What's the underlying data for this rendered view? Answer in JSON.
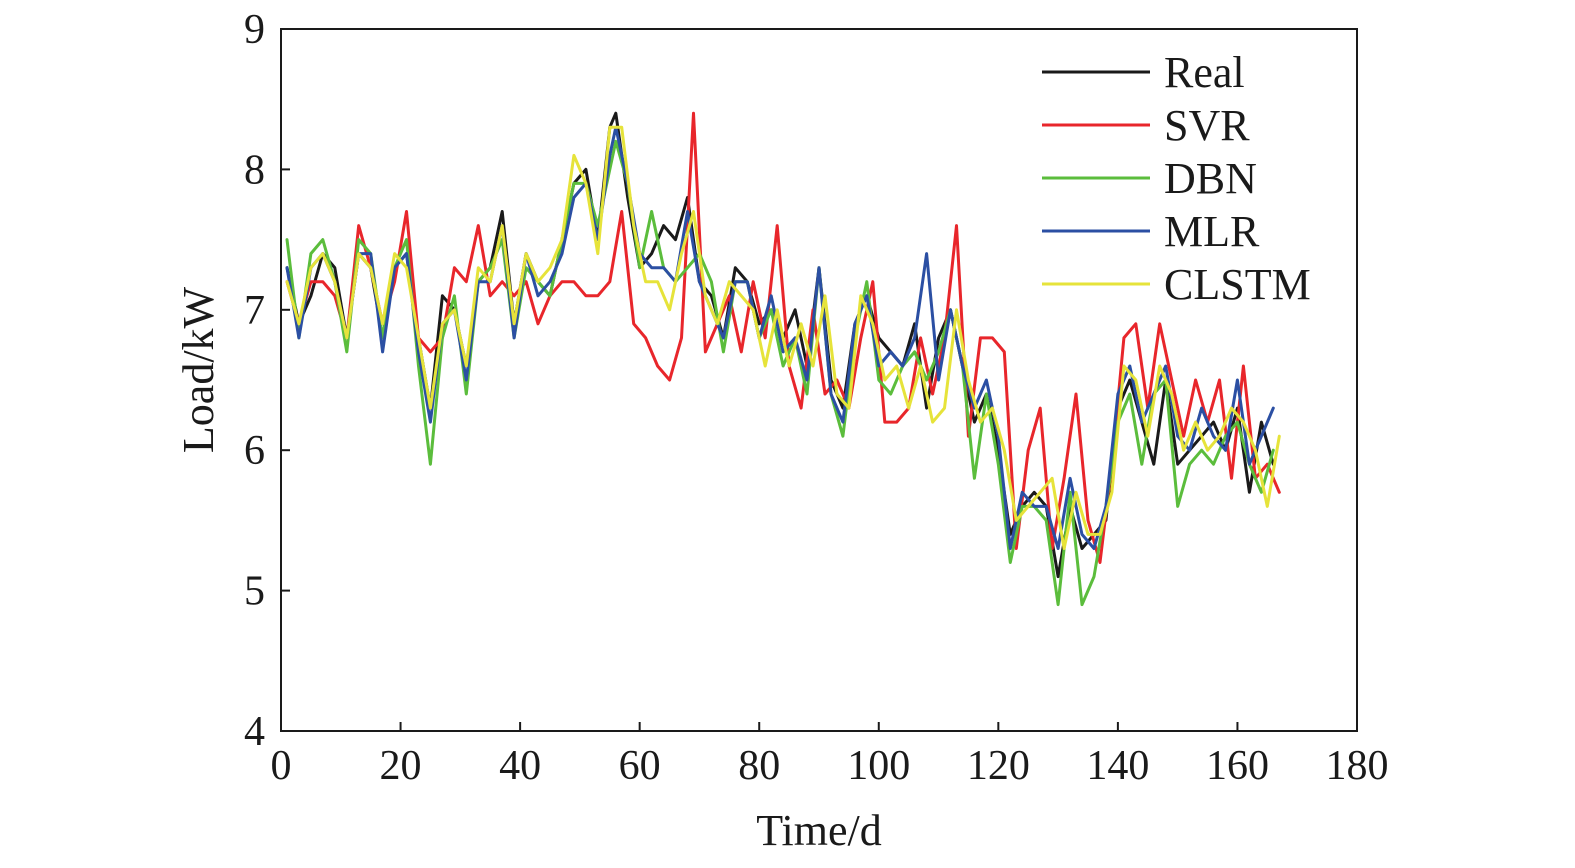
{
  "chart_data": {
    "type": "line",
    "title": "",
    "xlabel": "Time/d",
    "ylabel": "Load/kW",
    "xlim": [
      0,
      180
    ],
    "ylim": [
      4,
      9
    ],
    "xticks": [
      0,
      20,
      40,
      60,
      80,
      100,
      120,
      140,
      160,
      180
    ],
    "yticks": [
      4,
      5,
      6,
      7,
      8,
      9
    ],
    "xtick_labels": [
      "0",
      "20",
      "40",
      "60",
      "80",
      "100",
      "120",
      "140",
      "160",
      "180"
    ],
    "ytick_labels": [
      "4",
      "5",
      "6",
      "7",
      "8",
      "9"
    ],
    "grid": false,
    "legend_position": "top-right",
    "series": [
      {
        "name": "Real",
        "color": "#1a1a1a",
        "x": [
          1,
          3,
          5,
          7,
          9,
          11,
          13,
          15,
          17,
          19,
          21,
          23,
          25,
          27,
          29,
          31,
          33,
          35,
          37,
          39,
          41,
          43,
          45,
          47,
          49,
          51,
          53,
          55,
          56,
          58,
          60,
          62,
          64,
          66,
          68,
          70,
          72,
          74,
          76,
          78,
          80,
          82,
          84,
          86,
          88,
          90,
          92,
          94,
          96,
          98,
          100,
          102,
          104,
          106,
          108,
          110,
          112,
          114,
          116,
          118,
          120,
          122,
          124,
          126,
          128,
          130,
          132,
          134,
          136,
          138,
          140,
          142,
          144,
          146,
          148,
          150,
          152,
          154,
          156,
          158,
          160,
          162,
          164,
          166
        ],
        "y": [
          7.3,
          6.9,
          7.1,
          7.4,
          7.3,
          6.8,
          7.4,
          7.3,
          6.8,
          7.3,
          7.4,
          6.8,
          6.3,
          7.1,
          7.0,
          6.6,
          7.2,
          7.3,
          7.7,
          6.9,
          7.4,
          7.2,
          7.1,
          7.5,
          7.9,
          8.0,
          7.5,
          8.3,
          8.4,
          7.8,
          7.3,
          7.4,
          7.6,
          7.5,
          7.8,
          7.2,
          7.1,
          6.8,
          7.3,
          7.2,
          6.9,
          7.0,
          6.8,
          7.0,
          6.6,
          7.3,
          6.5,
          6.3,
          6.9,
          7.1,
          6.8,
          6.7,
          6.6,
          6.9,
          6.3,
          6.8,
          7.0,
          6.6,
          6.2,
          6.4,
          6.0,
          5.4,
          5.6,
          5.7,
          5.6,
          5.1,
          5.6,
          5.3,
          5.4,
          5.5,
          6.3,
          6.5,
          6.2,
          5.9,
          6.5,
          5.9,
          6.0,
          6.1,
          6.2,
          6.0,
          6.3,
          5.7,
          6.2,
          5.9
        ]
      },
      {
        "name": "SVR",
        "color": "#e8262b",
        "x": [
          1,
          3,
          5,
          7,
          9,
          11,
          13,
          15,
          17,
          19,
          21,
          23,
          25,
          27,
          29,
          31,
          33,
          35,
          37,
          39,
          41,
          43,
          45,
          47,
          49,
          51,
          53,
          55,
          57,
          59,
          61,
          63,
          65,
          67,
          69,
          71,
          73,
          75,
          77,
          79,
          81,
          83,
          85,
          87,
          89,
          91,
          93,
          95,
          97,
          99,
          101,
          103,
          105,
          107,
          109,
          111,
          113,
          115,
          117,
          119,
          121,
          123,
          125,
          127,
          129,
          131,
          133,
          135,
          137,
          139,
          141,
          143,
          145,
          147,
          149,
          151,
          153,
          155,
          157,
          159,
          161,
          163,
          165,
          167
        ],
        "y": [
          7.2,
          6.9,
          7.2,
          7.2,
          7.1,
          6.8,
          7.6,
          7.3,
          6.9,
          7.2,
          7.7,
          6.8,
          6.7,
          6.8,
          7.3,
          7.2,
          7.6,
          7.1,
          7.2,
          7.1,
          7.2,
          6.9,
          7.1,
          7.2,
          7.2,
          7.1,
          7.1,
          7.2,
          7.7,
          6.9,
          6.8,
          6.6,
          6.5,
          6.8,
          8.4,
          6.7,
          6.9,
          7.1,
          6.7,
          7.2,
          6.8,
          7.6,
          6.6,
          6.3,
          7.0,
          6.4,
          6.5,
          6.3,
          6.8,
          7.2,
          6.2,
          6.2,
          6.3,
          6.8,
          6.4,
          6.8,
          7.6,
          6.1,
          6.8,
          6.8,
          6.7,
          5.3,
          6.0,
          6.3,
          5.3,
          5.8,
          6.4,
          5.5,
          5.2,
          5.9,
          6.8,
          6.9,
          6.3,
          6.9,
          6.5,
          6.1,
          6.5,
          6.2,
          6.5,
          5.8,
          6.6,
          5.8,
          5.9,
          5.7
        ]
      },
      {
        "name": "DBN",
        "color": "#5bbd3c",
        "x": [
          1,
          3,
          5,
          7,
          9,
          11,
          13,
          15,
          17,
          19,
          21,
          23,
          25,
          27,
          29,
          31,
          33,
          35,
          37,
          39,
          41,
          43,
          45,
          47,
          49,
          51,
          53,
          55,
          56,
          58,
          60,
          62,
          64,
          66,
          68,
          70,
          72,
          74,
          76,
          78,
          80,
          82,
          84,
          86,
          88,
          90,
          92,
          94,
          96,
          98,
          100,
          102,
          104,
          106,
          108,
          110,
          112,
          114,
          116,
          118,
          120,
          122,
          124,
          126,
          128,
          130,
          132,
          134,
          136,
          138,
          140,
          142,
          144,
          146,
          148,
          150,
          152,
          154,
          156,
          158,
          160,
          162,
          164,
          166
        ],
        "y": [
          7.5,
          6.8,
          7.4,
          7.5,
          7.2,
          6.7,
          7.5,
          7.4,
          6.8,
          7.3,
          7.5,
          6.6,
          5.9,
          6.8,
          7.1,
          6.4,
          7.2,
          7.3,
          7.5,
          6.8,
          7.3,
          7.2,
          7.1,
          7.5,
          7.9,
          7.9,
          7.6,
          8.0,
          8.2,
          7.9,
          7.3,
          7.7,
          7.3,
          7.2,
          7.3,
          7.4,
          7.2,
          6.7,
          7.2,
          7.2,
          6.8,
          7.0,
          6.6,
          6.8,
          6.4,
          7.3,
          6.4,
          6.1,
          6.8,
          7.2,
          6.5,
          6.4,
          6.6,
          6.7,
          6.5,
          6.7,
          7.0,
          6.6,
          5.8,
          6.4,
          5.9,
          5.2,
          5.6,
          5.6,
          5.5,
          4.9,
          5.7,
          4.9,
          5.1,
          5.6,
          6.2,
          6.4,
          5.9,
          6.4,
          6.5,
          5.6,
          5.9,
          6.0,
          5.9,
          6.1,
          6.2,
          5.9,
          5.7,
          6.0
        ]
      },
      {
        "name": "MLR",
        "color": "#2b4fa3",
        "x": [
          1,
          3,
          5,
          7,
          9,
          11,
          13,
          15,
          17,
          19,
          21,
          23,
          25,
          27,
          29,
          31,
          33,
          35,
          37,
          39,
          41,
          43,
          45,
          47,
          49,
          51,
          53,
          55,
          56,
          58,
          60,
          62,
          64,
          66,
          68,
          70,
          72,
          74,
          76,
          78,
          80,
          82,
          84,
          86,
          88,
          90,
          92,
          94,
          96,
          98,
          100,
          102,
          104,
          106,
          108,
          110,
          112,
          114,
          116,
          118,
          120,
          122,
          124,
          126,
          128,
          130,
          132,
          134,
          136,
          138,
          140,
          142,
          144,
          146,
          148,
          150,
          152,
          154,
          156,
          158,
          160,
          162,
          164,
          166
        ],
        "y": [
          7.3,
          6.8,
          7.3,
          7.4,
          7.2,
          6.8,
          7.4,
          7.4,
          6.7,
          7.3,
          7.4,
          6.7,
          6.2,
          6.9,
          7.0,
          6.5,
          7.2,
          7.2,
          7.6,
          6.8,
          7.4,
          7.1,
          7.2,
          7.4,
          7.8,
          7.9,
          7.5,
          8.1,
          8.3,
          7.9,
          7.4,
          7.3,
          7.3,
          7.2,
          7.7,
          7.2,
          7.0,
          6.8,
          7.2,
          7.2,
          6.8,
          7.1,
          6.7,
          6.8,
          6.5,
          7.3,
          6.4,
          6.2,
          6.9,
          7.1,
          6.6,
          6.7,
          6.6,
          6.8,
          7.4,
          6.5,
          7.0,
          6.6,
          6.3,
          6.5,
          6.1,
          5.3,
          5.7,
          5.6,
          5.6,
          5.3,
          5.8,
          5.4,
          5.3,
          5.6,
          6.4,
          6.6,
          6.2,
          6.4,
          6.6,
          6.1,
          6.0,
          6.3,
          6.1,
          6.0,
          6.5,
          5.9,
          6.1,
          6.3
        ]
      },
      {
        "name": "CLSTM",
        "color": "#e6e33a",
        "x": [
          1,
          3,
          5,
          7,
          9,
          11,
          13,
          15,
          17,
          19,
          21,
          23,
          25,
          27,
          29,
          31,
          33,
          35,
          37,
          39,
          41,
          43,
          45,
          47,
          49,
          51,
          53,
          55,
          57,
          59,
          61,
          63,
          65,
          67,
          69,
          71,
          73,
          75,
          77,
          79,
          81,
          83,
          85,
          87,
          89,
          91,
          93,
          95,
          97,
          99,
          101,
          103,
          105,
          107,
          109,
          111,
          113,
          115,
          117,
          119,
          121,
          123,
          125,
          127,
          129,
          131,
          133,
          135,
          137,
          139,
          141,
          143,
          145,
          147,
          149,
          151,
          153,
          155,
          157,
          159,
          161,
          163,
          165,
          167
        ],
        "y": [
          7.2,
          6.9,
          7.3,
          7.4,
          7.2,
          6.8,
          7.4,
          7.3,
          6.9,
          7.4,
          7.3,
          6.8,
          6.3,
          6.9,
          7.0,
          6.6,
          7.3,
          7.2,
          7.6,
          6.9,
          7.4,
          7.2,
          7.3,
          7.5,
          8.1,
          7.9,
          7.4,
          8.3,
          8.3,
          7.6,
          7.2,
          7.2,
          7.0,
          7.4,
          7.7,
          7.1,
          6.9,
          7.2,
          7.1,
          7.0,
          6.6,
          7.0,
          6.6,
          6.9,
          6.6,
          7.1,
          6.4,
          6.3,
          7.1,
          6.9,
          6.5,
          6.6,
          6.3,
          6.6,
          6.2,
          6.3,
          7.0,
          6.5,
          6.2,
          6.3,
          6.0,
          5.5,
          5.6,
          5.7,
          5.8,
          5.3,
          5.7,
          5.4,
          5.4,
          5.7,
          6.6,
          6.5,
          6.1,
          6.6,
          6.4,
          6.0,
          6.2,
          6.0,
          6.1,
          6.3,
          6.2,
          6.0,
          5.6,
          6.1
        ]
      }
    ]
  }
}
